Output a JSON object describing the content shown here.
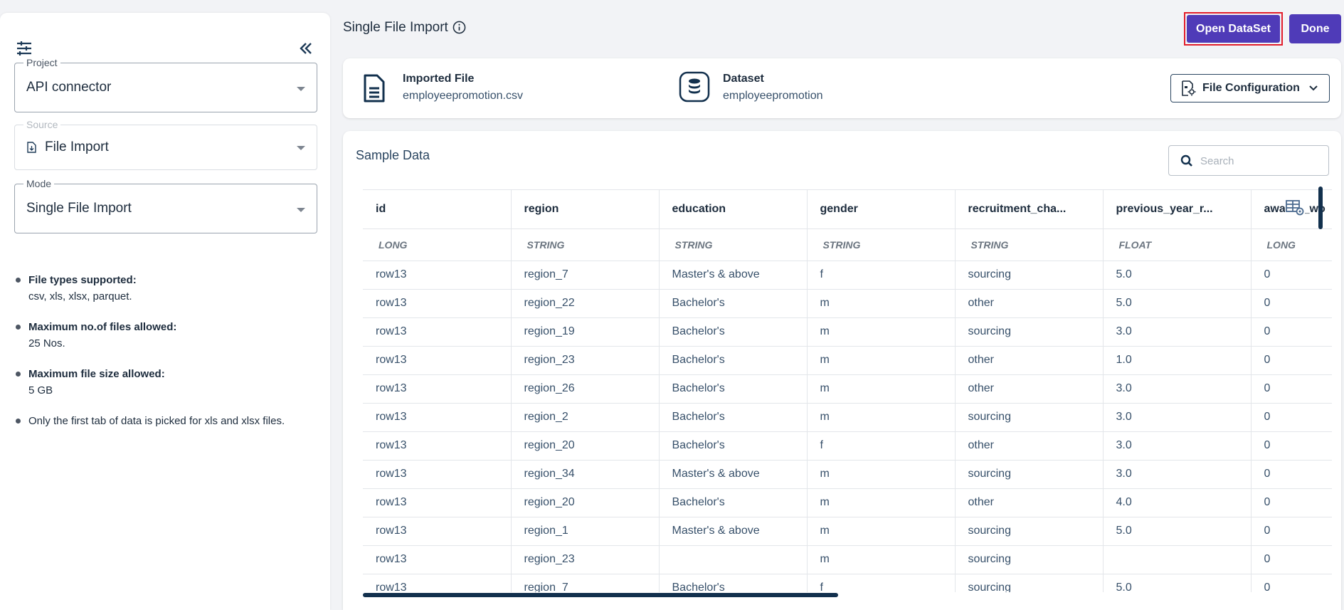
{
  "sidebar": {
    "project": {
      "label": "Project",
      "value": "API connector"
    },
    "source": {
      "label": "Source",
      "value": "File Import"
    },
    "mode": {
      "label": "Mode",
      "value": "Single File Import"
    },
    "info": [
      {
        "title": "File types supported:",
        "text": "csv, xls, xlsx, parquet."
      },
      {
        "title": "Maximum no.of files allowed:",
        "text": "25 Nos."
      },
      {
        "title": "Maximum file size allowed:",
        "text": "5 GB"
      },
      {
        "title": "",
        "text": "Only the first tab of data is picked for xls and xlsx files."
      }
    ]
  },
  "header": {
    "title": "Single File Import",
    "open_dataset_label": "Open DataSet",
    "done_label": "Done"
  },
  "file_card": {
    "imported_label": "Imported File",
    "imported_value": "employeepromotion.csv",
    "dataset_label": "Dataset",
    "dataset_value": "employeepromotion",
    "file_config_label": "File Configuration"
  },
  "sample": {
    "title": "Sample Data",
    "search_placeholder": "Search",
    "columns": [
      "id",
      "region",
      "education",
      "gender",
      "recruitment_cha...",
      "previous_year_r...",
      "awards_wo"
    ],
    "types": [
      "LONG",
      "STRING",
      "STRING",
      "STRING",
      "STRING",
      "FLOAT",
      "LONG"
    ],
    "rows": [
      [
        "row13",
        "region_7",
        "Master's & above",
        "f",
        "sourcing",
        "5.0",
        "0"
      ],
      [
        "row13",
        "region_22",
        "Bachelor's",
        "m",
        "other",
        "5.0",
        "0"
      ],
      [
        "row13",
        "region_19",
        "Bachelor's",
        "m",
        "sourcing",
        "3.0",
        "0"
      ],
      [
        "row13",
        "region_23",
        "Bachelor's",
        "m",
        "other",
        "1.0",
        "0"
      ],
      [
        "row13",
        "region_26",
        "Bachelor's",
        "m",
        "other",
        "3.0",
        "0"
      ],
      [
        "row13",
        "region_2",
        "Bachelor's",
        "m",
        "sourcing",
        "3.0",
        "0"
      ],
      [
        "row13",
        "region_20",
        "Bachelor's",
        "f",
        "other",
        "3.0",
        "0"
      ],
      [
        "row13",
        "region_34",
        "Master's & above",
        "m",
        "sourcing",
        "3.0",
        "0"
      ],
      [
        "row13",
        "region_20",
        "Bachelor's",
        "m",
        "other",
        "4.0",
        "0"
      ],
      [
        "row13",
        "region_1",
        "Master's & above",
        "m",
        "sourcing",
        "5.0",
        "0"
      ],
      [
        "row13",
        "region_23",
        "",
        "m",
        "sourcing",
        "",
        "0"
      ],
      [
        "row13",
        "region_7",
        "Bachelor's",
        "f",
        "sourcing",
        "5.0",
        "0"
      ]
    ]
  },
  "colors": {
    "accent": "#4f3bb8",
    "highlight": "#e11d2b",
    "navy": "#12304d"
  },
  "icons": [
    "filter-settings-icon",
    "double-chevron-left-icon",
    "file-import-icon",
    "info-icon",
    "document-icon",
    "database-icon",
    "file-config-icon",
    "chevron-down-icon",
    "search-icon",
    "table-settings-icon"
  ]
}
